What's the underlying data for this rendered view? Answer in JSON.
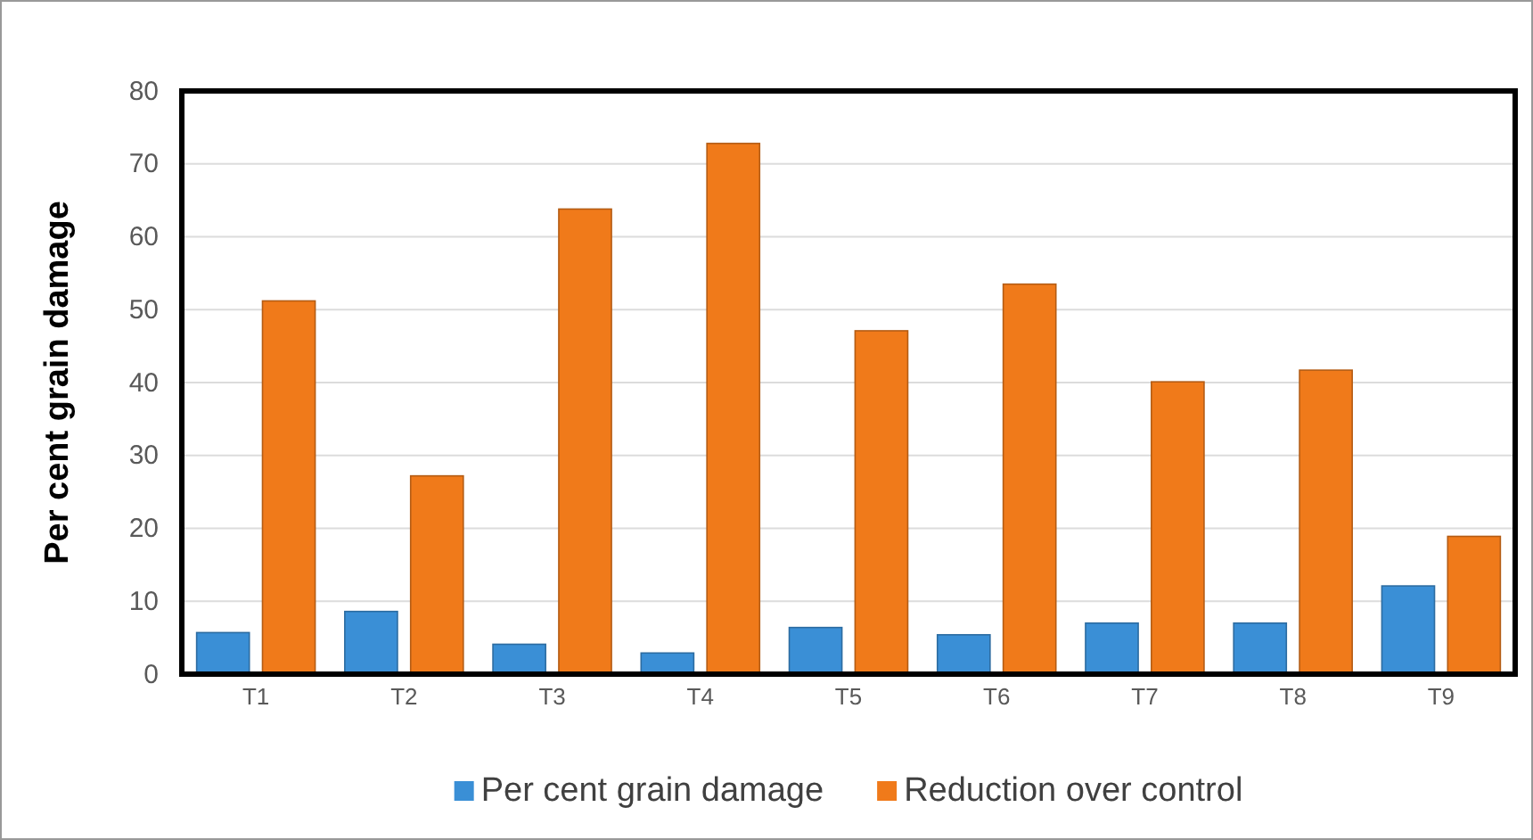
{
  "chart_data": {
    "type": "bar",
    "ylabel": "Per cent grain damage",
    "categories": [
      "T1",
      "T2",
      "T3",
      "T4",
      "T5",
      "T6",
      "T7",
      "T8",
      "T9"
    ],
    "series": [
      {
        "name": "Per cent grain damage",
        "color": "#3a8fd6",
        "values": [
          5.7,
          8.6,
          4.1,
          2.9,
          6.4,
          5.4,
          7.0,
          7.0,
          12.1
        ]
      },
      {
        "name": "Reduction over control",
        "color": "#f07a1a",
        "values": [
          51.2,
          27.2,
          63.8,
          72.8,
          47.1,
          53.5,
          40.1,
          41.7,
          18.9
        ]
      }
    ],
    "ylim": [
      0,
      80
    ],
    "yticks": [
      0,
      10,
      20,
      30,
      40,
      50,
      60,
      70,
      80
    ],
    "grid": "y",
    "legend": "bottom"
  }
}
